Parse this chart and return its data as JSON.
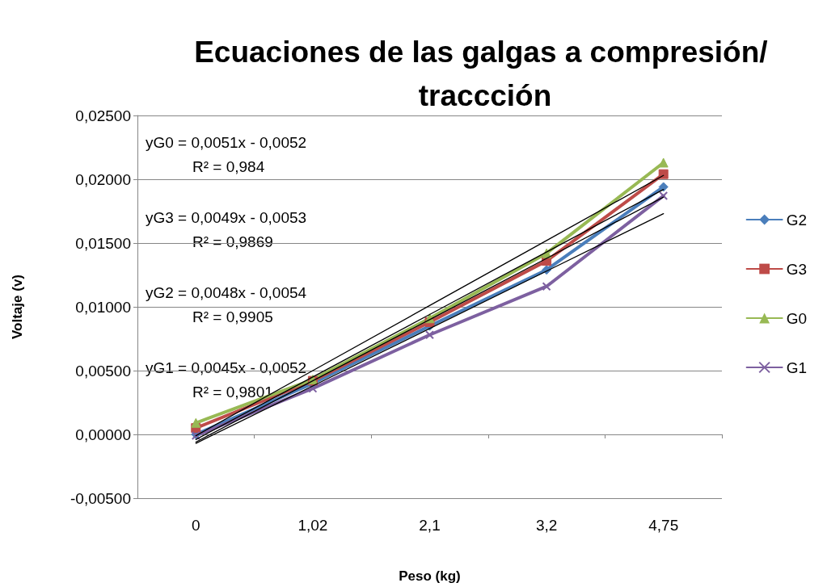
{
  "chart_data": {
    "type": "line",
    "title": "Ecuaciones de las galgas a compresión/ traccción",
    "xlabel": "Peso (kg)",
    "ylabel": "Voltaje (v)",
    "categories": [
      "0",
      "1,02",
      "2,1",
      "3,2",
      "4,75"
    ],
    "series": [
      {
        "name": "G2",
        "color": "#4a7ebb",
        "marker": "diamond",
        "values": [
          0.0,
          0.004,
          0.0085,
          0.0129,
          0.0194
        ]
      },
      {
        "name": "G3",
        "color": "#be4b48",
        "marker": "square",
        "values": [
          0.0005,
          0.0042,
          0.0088,
          0.0136,
          0.0204
        ]
      },
      {
        "name": "G0",
        "color": "#98b954",
        "marker": "triangle",
        "values": [
          0.0009,
          0.0043,
          0.0091,
          0.0142,
          0.0213
        ]
      },
      {
        "name": "G1",
        "color": "#7d60a0",
        "marker": "cross",
        "values": [
          -0.0001,
          0.0036,
          0.0078,
          0.0116,
          0.0187
        ]
      },
      {
        "type": "line",
        "color": "#000000",
        "marker": "none",
        "values": [
          -0.0001,
          0.005,
          0.0101,
          0.0152,
          0.0203
        ]
      },
      {
        "type": "line",
        "color": "#000000",
        "marker": "none",
        "values": [
          -0.0004,
          0.0045,
          0.0094,
          0.0143,
          0.0192
        ]
      },
      {
        "type": "line",
        "color": "#000000",
        "marker": "none",
        "values": [
          -0.0006,
          0.0042,
          0.009,
          0.0138,
          0.0186
        ]
      },
      {
        "type": "line",
        "color": "#000000",
        "marker": "none",
        "values": [
          -0.0007,
          0.0038,
          0.0083,
          0.0128,
          0.0173
        ]
      }
    ],
    "ylim": [
      -0.005,
      0.025
    ],
    "yticks": [
      {
        "value": -0.005,
        "label": "-0,00500"
      },
      {
        "value": 0,
        "label": "0,00000"
      },
      {
        "value": 0.005,
        "label": "0,00500"
      },
      {
        "value": 0.01,
        "label": "0,01000"
      },
      {
        "value": 0.015,
        "label": "0,01500"
      },
      {
        "value": 0.02,
        "label": "0,02000"
      },
      {
        "value": 0.025,
        "label": "0,02500"
      }
    ],
    "grid": "y",
    "legend": "right",
    "annotations": [
      "yG0 = 0,0051x - 0,0052",
      "R² = 0,984",
      "yG3 = 0,0049x - 0,0053",
      "R² = 0,9869",
      "yG2 = 0,0048x - 0,0054",
      "R² = 0,9905",
      "yG1 = 0,0045x - 0,0052",
      "R² = 0,9801"
    ]
  }
}
